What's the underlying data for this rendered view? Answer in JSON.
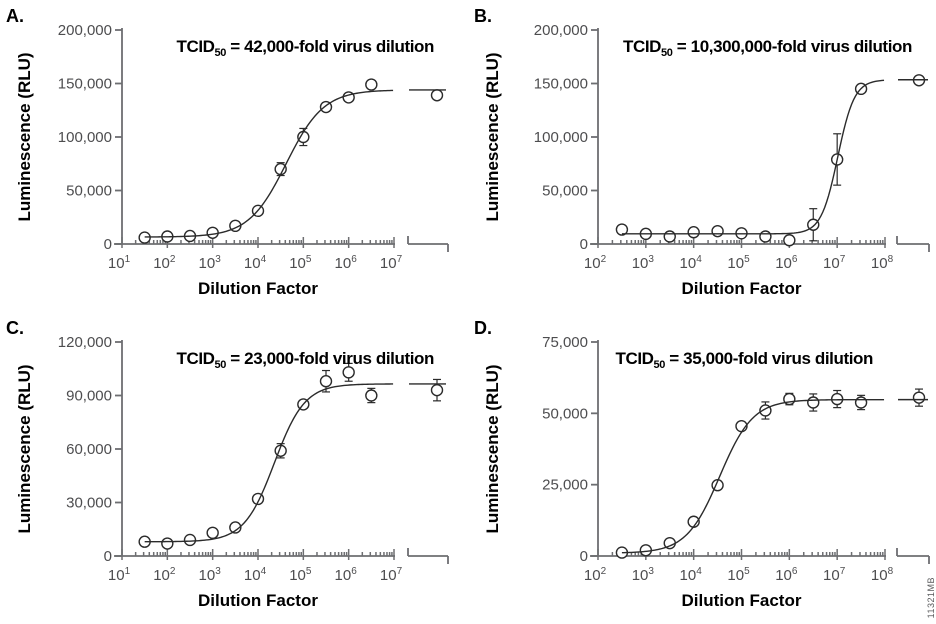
{
  "figure": {
    "watermark": "11321MB",
    "colors": {
      "background": "#ffffff",
      "axis": "#6d6e71",
      "tick_label": "#4d4d4f",
      "data": "#2b2b2b",
      "title": "#000000"
    }
  },
  "chart_data": [
    {
      "panel_label": "A.",
      "type": "scatter",
      "title": {
        "prefix": "TCID",
        "sub": "50",
        "suffix": " = 42,000-fold virus dilution"
      },
      "tcid50": "42,000",
      "xlabel": "Dilution Factor",
      "ylabel": "Luminescence (RLU)",
      "x_scale": "log",
      "x_tick_exponents": [
        1,
        2,
        3,
        4,
        5,
        6,
        7
      ],
      "x_axis_break": true,
      "ylim": [
        0,
        200000
      ],
      "y_ticks": [
        {
          "value": 0,
          "label": "0"
        },
        {
          "value": 50000,
          "label": "50,000"
        },
        {
          "value": 100000,
          "label": "100,000"
        },
        {
          "value": 150000,
          "label": "150,000"
        },
        {
          "value": 200000,
          "label": "200,000"
        }
      ],
      "points": [
        {
          "logx": 1.5,
          "y": 6000,
          "err": 0
        },
        {
          "logx": 2.0,
          "y": 7000,
          "err": 0
        },
        {
          "logx": 2.5,
          "y": 7500,
          "err": 0
        },
        {
          "logx": 3.0,
          "y": 10500,
          "err": 0
        },
        {
          "logx": 3.5,
          "y": 17000,
          "err": 0
        },
        {
          "logx": 4.0,
          "y": 31000,
          "err": 0
        },
        {
          "logx": 4.5,
          "y": 70000,
          "err": 6000
        },
        {
          "logx": 5.0,
          "y": 100000,
          "err": 8000
        },
        {
          "logx": 5.5,
          "y": 128000,
          "err": 4000
        },
        {
          "logx": 6.0,
          "y": 137000,
          "err": 0
        },
        {
          "logx": 6.5,
          "y": 149000,
          "err": 0
        }
      ],
      "end_point": {
        "y": 139000,
        "err": 0
      },
      "curve": {
        "bottom": 6500,
        "top": 144000,
        "logEC50": 4.623,
        "hill": 1.05
      }
    },
    {
      "panel_label": "B.",
      "type": "scatter",
      "title": {
        "prefix": "TCID",
        "sub": "50",
        "suffix": " = 10,300,000-fold virus dilution"
      },
      "tcid50": "10,300,000",
      "xlabel": "Dilution Factor",
      "ylabel": "Luminescence (RLU)",
      "x_scale": "log",
      "x_tick_exponents": [
        2,
        3,
        4,
        5,
        6,
        7,
        8
      ],
      "x_axis_break": true,
      "ylim": [
        0,
        200000
      ],
      "y_ticks": [
        {
          "value": 0,
          "label": "0"
        },
        {
          "value": 50000,
          "label": "50,000"
        },
        {
          "value": 100000,
          "label": "100,000"
        },
        {
          "value": 150000,
          "label": "150,000"
        },
        {
          "value": 200000,
          "label": "200,000"
        }
      ],
      "points": [
        {
          "logx": 2.5,
          "y": 13500,
          "err": 0
        },
        {
          "logx": 3.0,
          "y": 9500,
          "err": 0
        },
        {
          "logx": 3.5,
          "y": 7000,
          "err": 0
        },
        {
          "logx": 4.0,
          "y": 11000,
          "err": 0
        },
        {
          "logx": 4.5,
          "y": 12000,
          "err": 0
        },
        {
          "logx": 5.0,
          "y": 10000,
          "err": 0
        },
        {
          "logx": 5.5,
          "y": 7000,
          "err": 0
        },
        {
          "logx": 6.0,
          "y": 3500,
          "err": 0
        },
        {
          "logx": 6.5,
          "y": 18000,
          "err": 15000
        },
        {
          "logx": 7.0,
          "y": 79000,
          "err": 24000
        },
        {
          "logx": 7.5,
          "y": 145000,
          "err": 3000
        }
      ],
      "end_point": {
        "y": 153000,
        "err": 0
      },
      "curve": {
        "bottom": 9500,
        "top": 153500,
        "logEC50": 7.013,
        "hill": 2.5
      }
    },
    {
      "panel_label": "C.",
      "type": "scatter",
      "title": {
        "prefix": "TCID",
        "sub": "50",
        "suffix": " = 23,000-fold virus dilution"
      },
      "tcid50": "23,000",
      "xlabel": "Dilution Factor",
      "ylabel": "Luminescence (RLU)",
      "x_scale": "log",
      "x_tick_exponents": [
        1,
        2,
        3,
        4,
        5,
        6,
        7
      ],
      "x_axis_break": true,
      "ylim": [
        0,
        120000
      ],
      "y_ticks": [
        {
          "value": 0,
          "label": "0"
        },
        {
          "value": 30000,
          "label": "30,000"
        },
        {
          "value": 60000,
          "label": "60,000"
        },
        {
          "value": 90000,
          "label": "90,000"
        },
        {
          "value": 120000,
          "label": "120,000"
        }
      ],
      "points": [
        {
          "logx": 1.5,
          "y": 8000,
          "err": 0
        },
        {
          "logx": 2.0,
          "y": 7000,
          "err": 0
        },
        {
          "logx": 2.5,
          "y": 9000,
          "err": 0
        },
        {
          "logx": 3.0,
          "y": 13000,
          "err": 0
        },
        {
          "logx": 3.5,
          "y": 16000,
          "err": 0
        },
        {
          "logx": 4.0,
          "y": 32000,
          "err": 0
        },
        {
          "logx": 4.5,
          "y": 59000,
          "err": 4000
        },
        {
          "logx": 5.0,
          "y": 85000,
          "err": 2000
        },
        {
          "logx": 5.5,
          "y": 98000,
          "err": 6000
        },
        {
          "logx": 6.0,
          "y": 103000,
          "err": 5000
        },
        {
          "logx": 6.5,
          "y": 90000,
          "err": 4000
        }
      ],
      "end_point": {
        "y": 93000,
        "err": 6000
      },
      "curve": {
        "bottom": 8000,
        "top": 96500,
        "logEC50": 4.362,
        "hill": 1.3
      }
    },
    {
      "panel_label": "D.",
      "type": "scatter",
      "title": {
        "prefix": "TCID",
        "sub": "50",
        "suffix": " = 35,000-fold virus dilution"
      },
      "tcid50": "35,000",
      "xlabel": "Dilution Factor",
      "ylabel": "Luminescence (RLU)",
      "x_scale": "log",
      "x_tick_exponents": [
        2,
        3,
        4,
        5,
        6,
        7,
        8
      ],
      "x_axis_break": true,
      "ylim": [
        0,
        75000
      ],
      "y_ticks": [
        {
          "value": 0,
          "label": "0"
        },
        {
          "value": 25000,
          "label": "25,000"
        },
        {
          "value": 50000,
          "label": "50,000"
        },
        {
          "value": 75000,
          "label": "75,000"
        }
      ],
      "points": [
        {
          "logx": 2.5,
          "y": 1200,
          "err": 0
        },
        {
          "logx": 3.0,
          "y": 2000,
          "err": 0
        },
        {
          "logx": 3.5,
          "y": 4500,
          "err": 0
        },
        {
          "logx": 4.0,
          "y": 12000,
          "err": 0
        },
        {
          "logx": 4.5,
          "y": 24800,
          "err": 0
        },
        {
          "logx": 5.0,
          "y": 45500,
          "err": 0
        },
        {
          "logx": 5.5,
          "y": 51000,
          "err": 3000
        },
        {
          "logx": 6.0,
          "y": 55000,
          "err": 2000
        },
        {
          "logx": 6.5,
          "y": 53800,
          "err": 3000
        },
        {
          "logx": 7.0,
          "y": 55000,
          "err": 3000
        },
        {
          "logx": 7.5,
          "y": 53800,
          "err": 2500
        }
      ],
      "end_point": {
        "y": 55500,
        "err": 3000
      },
      "curve": {
        "bottom": 1000,
        "top": 54800,
        "logEC50": 4.544,
        "hill": 1.25
      }
    }
  ]
}
